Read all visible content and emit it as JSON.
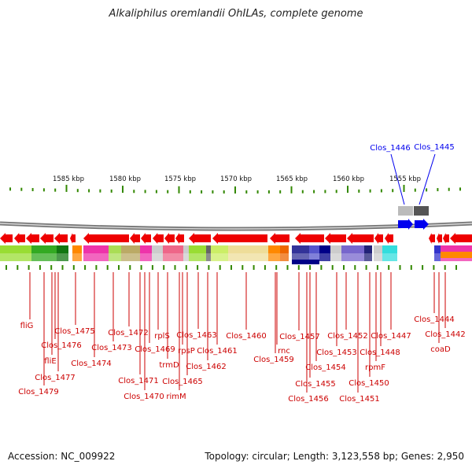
{
  "title": "Alkaliphilus oremlandii OhILAs, complete genome",
  "scale_labels": [
    "1585 kbp",
    "1580 kbp",
    "1575 kbp",
    "1570 kbp",
    "1565 kbp",
    "1560 kbp",
    "1555 kbp"
  ],
  "highlighted_genes": [
    "Clos_1446",
    "Clos_1445"
  ],
  "gene_labels": [
    "fliG",
    "Clos_1476",
    "fliE",
    "Clos_1477",
    "Clos_1479",
    "Clos_1475",
    "Clos_1474",
    "Clos_1473",
    "Clos_1472",
    "Clos_1471",
    "Clos_1470",
    "Clos_1469",
    "rplS",
    "trmD",
    "rpsP",
    "Clos_1465",
    "rimM",
    "Clos_1463",
    "Clos_1462",
    "Clos_1461",
    "Clos_1460",
    "rnc",
    "Clos_1459",
    "Clos_1457",
    "Clos_1455",
    "Clos_1456",
    "Clos_1454",
    "Clos_1453",
    "Clos_1452",
    "Clos_1451",
    "Clos_1450",
    "rpmF",
    "Clos_1448",
    "Clos_1447",
    "Clos_1444",
    "Clos_1442",
    "coaD"
  ],
  "footer": {
    "accession": "Accession: NC_009922",
    "topology": "Topology: circular; Length: 3,123,558 bp; Genes: 2,950"
  },
  "colors": {
    "gene_red": "#ee0000",
    "highlight_blue": "#0000ee",
    "tick_green": "#338800",
    "backbone_gray": "#888888",
    "label_red": "#cc0000"
  }
}
